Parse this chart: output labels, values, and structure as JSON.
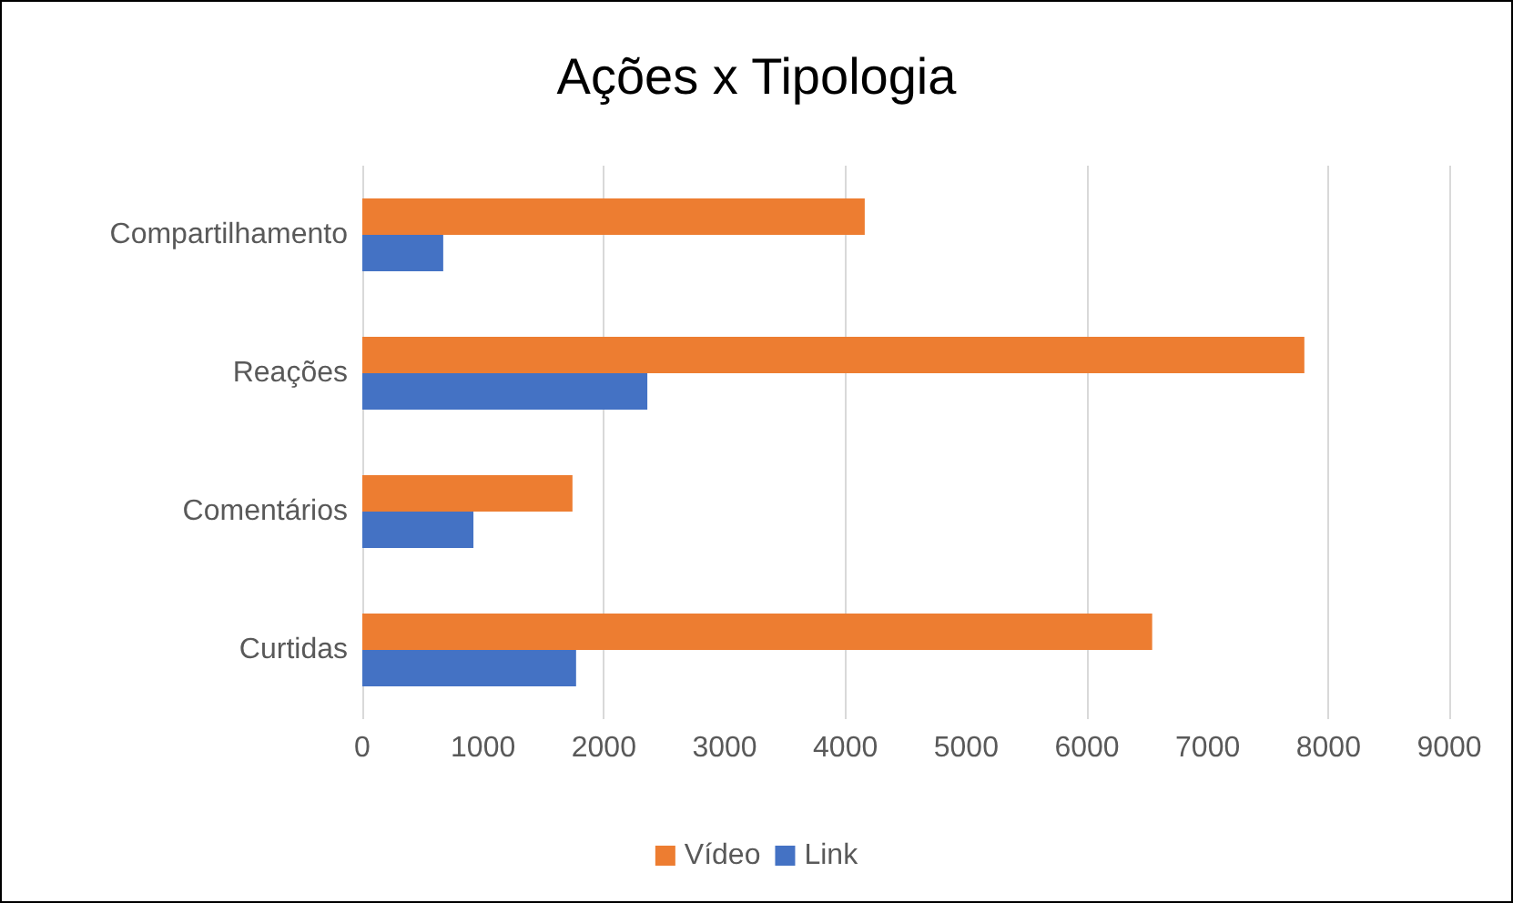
{
  "chart_data": {
    "type": "bar",
    "title": "Ações x Tipologia",
    "orientation": "horizontal",
    "categories": [
      "Compartilhamento",
      "Reações",
      "Comentários",
      "Curtidas"
    ],
    "series": [
      {
        "name": "Vídeo",
        "color": "#ed7d31",
        "values": [
          4160,
          7800,
          1740,
          6540
        ]
      },
      {
        "name": "Link",
        "color": "#4472c4",
        "values": [
          670,
          2360,
          920,
          1770
        ]
      }
    ],
    "xlim": [
      0,
      9000
    ],
    "xticks": [
      0,
      1000,
      2000,
      3000,
      4000,
      5000,
      6000,
      7000,
      8000,
      9000
    ],
    "grid": "x",
    "legend": "bottom"
  }
}
